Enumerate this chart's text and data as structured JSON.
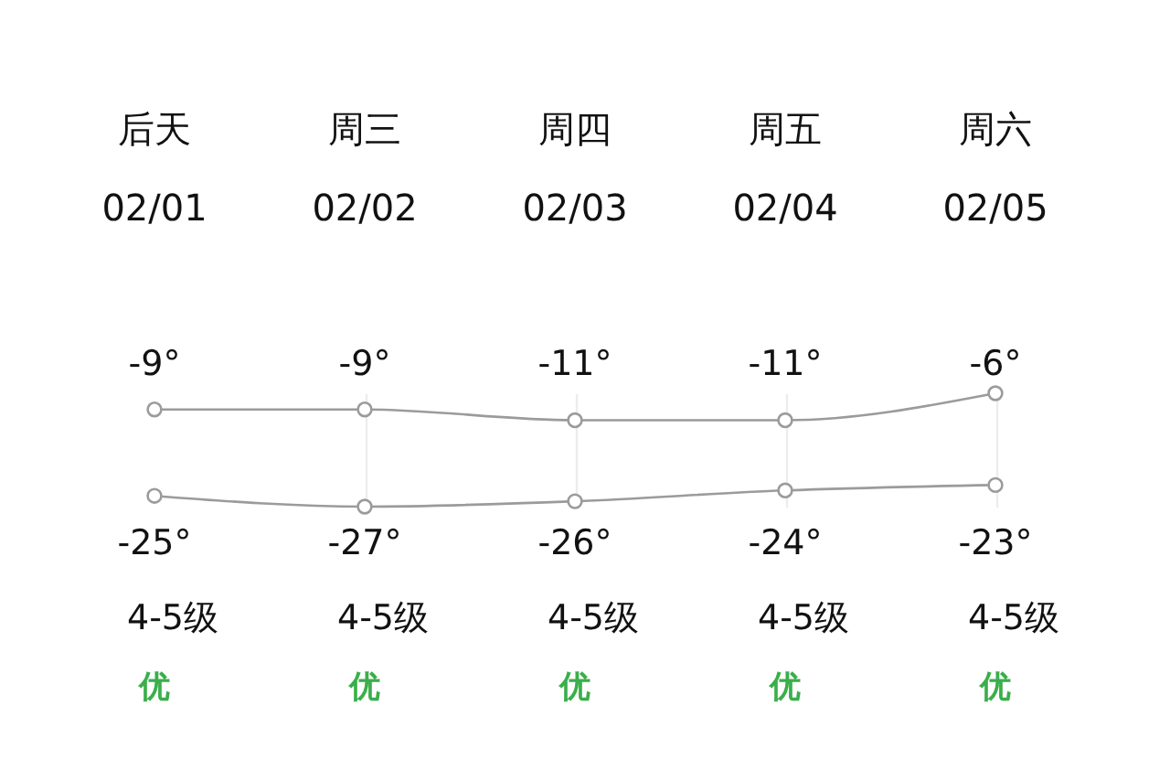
{
  "chart_data": {
    "type": "line",
    "categories": [
      "后天\n02/01",
      "周三\n02/02",
      "周四\n02/03",
      "周五\n02/04",
      "周六\n02/05"
    ],
    "series": [
      {
        "color": "#9b9b9b",
        "values": [
          -9,
          -9,
          -11,
          -11,
          -6
        ],
        "value_labels": [
          "-9°",
          "-9°",
          "-11°",
          "-11°",
          "-6°"
        ]
      },
      {
        "color": "#9b9b9b",
        "values": [
          -25,
          -27,
          -26,
          -24,
          -23
        ],
        "value_labels": [
          "-25°",
          "-27°",
          "-26°",
          "-24°",
          "-23°"
        ]
      }
    ],
    "tick_labels": "x",
    "grid": "x",
    "marker": "circle",
    "line_style": "solid",
    "annotations": [
      "4-5级",
      "4-5级",
      "4-5级",
      "4-5级",
      "4-5级",
      "优",
      "优",
      "优",
      "优",
      "优"
    ]
  }
}
